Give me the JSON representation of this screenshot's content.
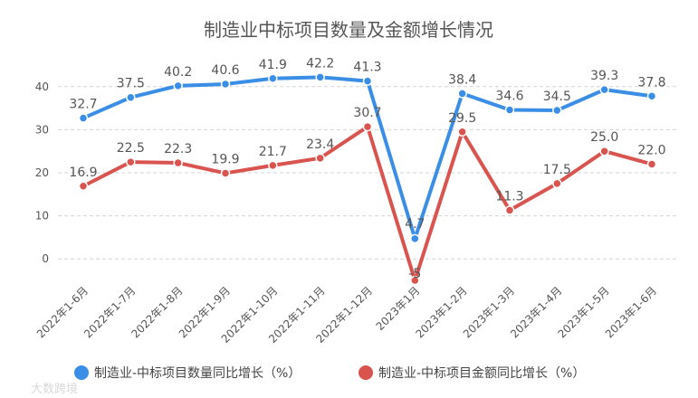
{
  "chart_data": {
    "type": "line",
    "title": "制造业中标项目数量及金额增长情况",
    "categories": [
      "2022年1-6月",
      "2022年1-7月",
      "2022年1-8月",
      "2022年1-9月",
      "2022年1-10月",
      "2022年1-11月",
      "2022年1-12月",
      "2023年1月",
      "2023年1-2月",
      "2023年1-3月",
      "2023年1-4月",
      "2023年1-5月",
      "2023年1-6月"
    ],
    "series": [
      {
        "name": "制造业-中标项目数量同比增长（%）",
        "color": "#3a8ee6",
        "values": [
          32.7,
          37.5,
          40.2,
          40.6,
          41.9,
          42.2,
          41.3,
          4.7,
          38.4,
          34.6,
          34.5,
          39.3,
          37.8
        ],
        "labels": [
          "32.7",
          "37.5",
          "40.2",
          "40.6",
          "41.9",
          "42.2",
          "41.3",
          "4.7",
          "38.4",
          "34.6",
          "34.5",
          "39.3",
          "37.8"
        ]
      },
      {
        "name": "制造业-中标项目金额同比增长（%）",
        "color": "#d9534f",
        "values": [
          16.9,
          22.5,
          22.3,
          19.9,
          21.7,
          23.4,
          30.7,
          -5.0,
          29.5,
          11.3,
          17.5,
          25.0,
          22.0
        ],
        "labels": [
          "16.9",
          "22.5",
          "22.3",
          "19.9",
          "21.7",
          "23.4",
          "30.7",
          "-5",
          "29.5",
          "11.3",
          "17.5",
          "25.0",
          "22.0"
        ]
      }
    ],
    "yticks": [
      0,
      10,
      20,
      30,
      40
    ],
    "ylim": [
      -5,
      45
    ],
    "grid": "horizontal-dashed",
    "legend": "bottom",
    "xlabel": "",
    "ylabel": ""
  },
  "watermark": "大数跨境"
}
